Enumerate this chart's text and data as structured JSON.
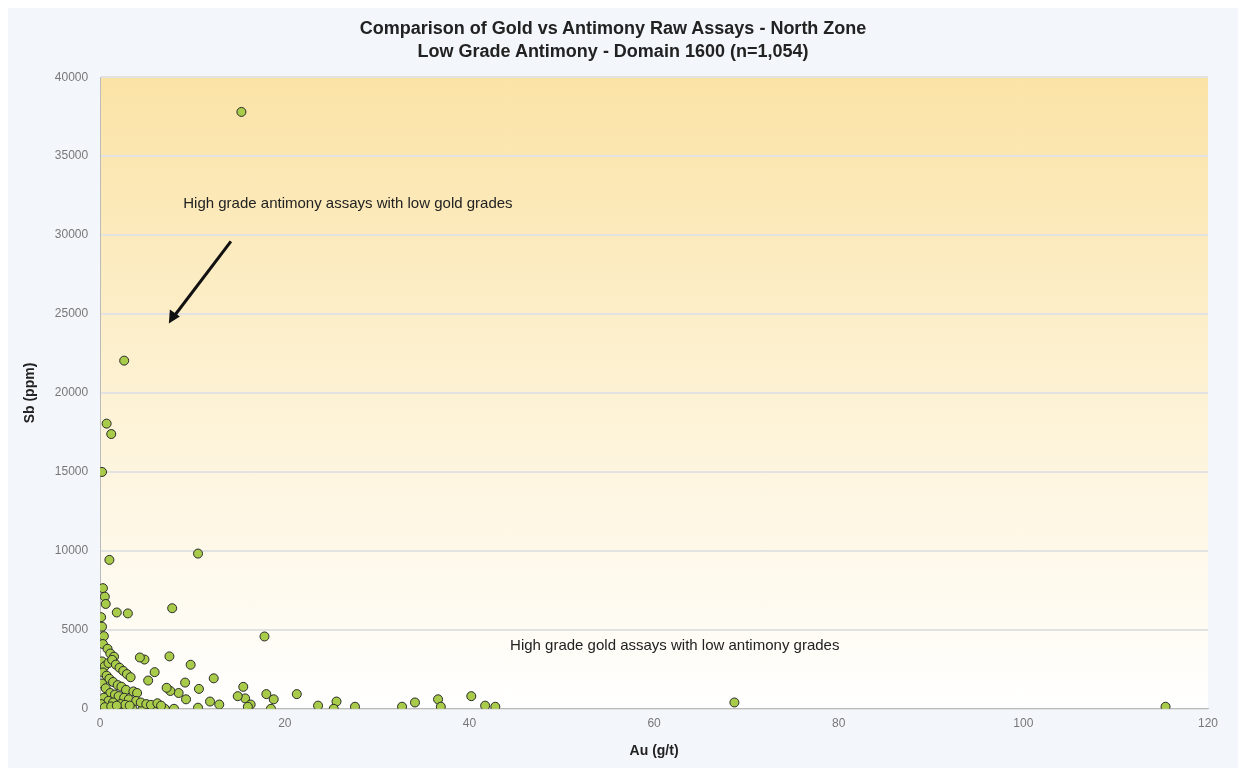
{
  "chart_data": {
    "type": "scatter",
    "title": "Comparison of Gold vs Antimony Raw Assays - North Zone",
    "subtitle": "Low Grade Antimony - Domain 1600 (n=1,054)",
    "xlabel": "Au (g/t)",
    "ylabel": "Sb (ppm)",
    "annotations": [
      "High grade antimony assays with low gold grades",
      "High grade gold assays with low antimony grades"
    ],
    "xlim": [
      0,
      120
    ],
    "xticks": [
      0,
      20,
      40,
      60,
      80,
      100,
      120
    ],
    "ylim": [
      0,
      40000
    ],
    "yticks": [
      0,
      5000,
      10000,
      15000,
      20000,
      25000,
      30000,
      35000,
      40000
    ],
    "grid": "y",
    "legend": false,
    "marker": "circle",
    "series": [
      {
        "color": "#a8cc4a",
        "x": [
          15.3,
          2.6,
          0.7,
          1.2,
          0.2,
          1.0,
          10.6,
          7.8,
          17.8,
          0.3,
          0.5,
          0.6,
          1.8,
          3.0,
          7.5,
          9.8,
          5.9,
          12.3,
          9.2,
          10.7,
          15.5,
          21.3,
          18.0,
          18.8,
          18.5,
          23.6,
          25.6,
          25.3,
          27.6,
          32.7,
          34.1,
          36.6,
          36.9,
          40.2,
          41.7,
          42.8,
          68.7,
          115.4,
          15.7,
          14.9,
          16.3,
          16.0,
          12.9,
          11.9,
          10.6,
          9.3,
          8.5,
          7.6,
          7.2,
          8.0,
          7.0,
          4.8,
          4.3,
          5.2,
          5.7,
          4.6,
          3.5,
          2.4,
          0.6,
          0.1,
          0.2,
          0.4,
          0.3,
          0.8,
          1.1,
          1.5,
          0.2,
          0.5,
          0.9,
          1.3,
          1.7,
          2.1,
          2.5,
          2.9,
          3.3,
          0.3,
          0.7,
          1.0,
          1.4,
          1.9,
          2.3,
          2.8,
          3.6,
          4.0,
          0.2,
          0.6,
          1.1,
          1.6,
          2.0,
          2.6,
          3.1,
          3.9,
          4.4,
          5.0,
          5.5,
          6.2,
          6.6,
          0.4,
          0.9,
          1.4,
          2.2,
          2.7,
          3.2,
          0.1,
          0.5,
          1.2,
          1.8
        ],
        "values": [
          37800,
          22050,
          18060,
          17400,
          15000,
          9430,
          9830,
          6370,
          4580,
          7640,
          7100,
          6640,
          6100,
          6040,
          3320,
          2790,
          2320,
          1930,
          1660,
          1260,
          1390,
          930,
          930,
          600,
          0,
          200,
          460,
          0,
          130,
          130,
          400,
          600,
          130,
          800,
          200,
          130,
          400,
          130,
          660,
          800,
          270,
          130,
          270,
          460,
          70,
          600,
          1000,
          1130,
          1330,
          0,
          0,
          3120,
          3250,
          1790,
          0,
          0,
          0,
          0,
          0,
          5800,
          5200,
          4600,
          4100,
          3800,
          3500,
          3300,
          3000,
          2700,
          2900,
          3100,
          2800,
          2600,
          2400,
          2200,
          2000,
          2300,
          2100,
          1900,
          1700,
          1500,
          1400,
          1200,
          1100,
          1000,
          1600,
          1300,
          1000,
          900,
          800,
          700,
          600,
          500,
          400,
          300,
          250,
          350,
          200,
          700,
          500,
          400,
          300,
          250,
          200,
          300,
          100,
          150,
          200
        ]
      }
    ]
  }
}
